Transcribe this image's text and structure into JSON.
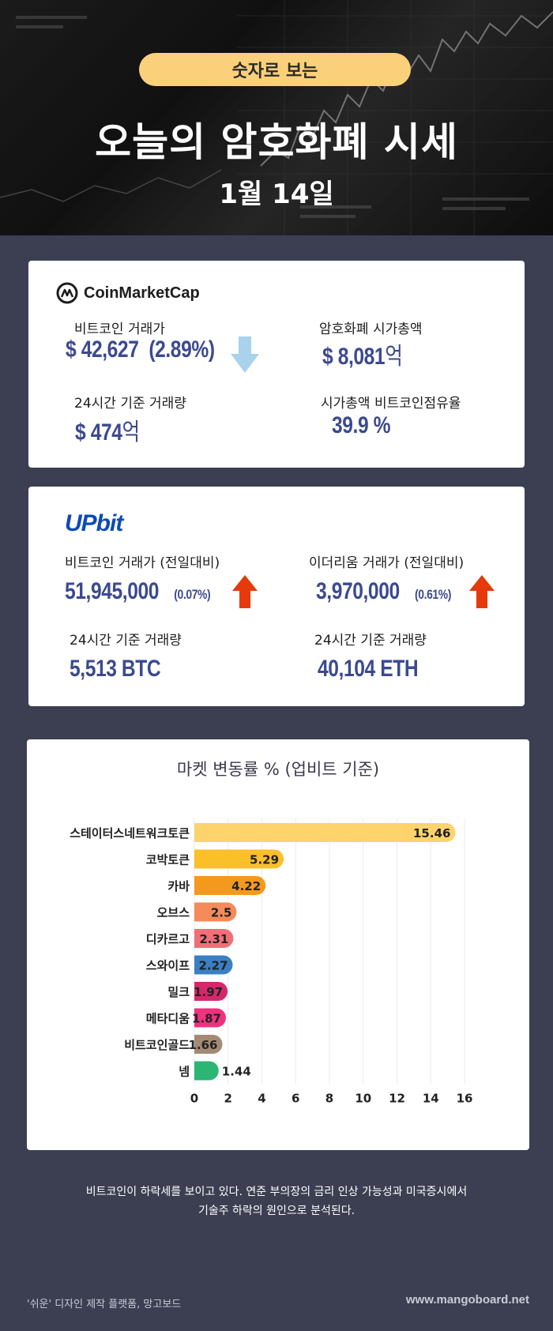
{
  "header": {
    "pill": "숫자로 보는",
    "title": "오늘의 암호화폐 시세",
    "date": "1월 14일"
  },
  "coinmarketcap": {
    "logo_text": "CoinMarketCap",
    "btc_label": "비트코인 거래가",
    "btc_price": "$ 42,627",
    "btc_change": "(2.89%)",
    "btc_direction": "down",
    "mcap_label": "암호화폐 시가총액",
    "mcap_value": "$ 8,081",
    "mcap_unit": "억",
    "volume_label": "24시간 기준 거래량",
    "volume_value": "$ 474",
    "volume_unit": "억",
    "dominance_label": "시가총액 비트코인점유율",
    "dominance_value": "39.9 %"
  },
  "upbit": {
    "logo_text": "UPbit",
    "btc_label": "비트코인 거래가 (전일대비)",
    "btc_price": "51,945,000",
    "btc_change": "(0.07%)",
    "btc_direction": "up",
    "eth_label": "이더리움 거래가 (전일대비)",
    "eth_price": "3,970,000",
    "eth_change": "(0.61%)",
    "eth_direction": "up",
    "btc_volume_label": "24시간 기준 거래량",
    "btc_volume": "5,513 BTC",
    "eth_volume_label": "24시간 기준 거래량",
    "eth_volume": "40,104 ETH"
  },
  "chart_data": {
    "type": "bar",
    "orientation": "horizontal",
    "title": "마켓 변동률 % (업비트 기준)",
    "categories": [
      "스테이터스네트워크토큰",
      "코박토큰",
      "카바",
      "오브스",
      "디카르고",
      "스와이프",
      "밀크",
      "메타디움",
      "비트코인골드",
      "넴"
    ],
    "values": [
      15.46,
      5.29,
      4.22,
      2.5,
      2.31,
      2.27,
      1.97,
      1.87,
      1.66,
      1.44
    ],
    "value_labels": [
      "15.46",
      "5.29",
      "4.22",
      "2.5",
      "2.31",
      "2.27",
      "1.97",
      "1.87",
      "1.66",
      "1.44"
    ],
    "colors": [
      "#fdd46b",
      "#fbbf2a",
      "#f39a1e",
      "#f58a5a",
      "#f06f78",
      "#3a7fc4",
      "#d4286b",
      "#f0317f",
      "#a48a74",
      "#2bb673"
    ],
    "x_ticks": [
      "0",
      "2",
      "4",
      "6",
      "8",
      "10",
      "12",
      "14",
      "16"
    ],
    "xlim": [
      0,
      16
    ],
    "grid": true
  },
  "note": {
    "line1": "비트코인이 하락세를 보이고 있다. 연준 부의장의 금리 인상 가능성과 미국증시에서",
    "line2": "기술주 하락의 원인으로 분석된다."
  },
  "footer": {
    "left": "'쉬운' 디자인 제작 플랫폼, 망고보드",
    "right": "www.mangoboard.net"
  },
  "colors": {
    "background": "#3c3f52",
    "value_blue": "#3b4a8f",
    "arrow_down": "#a9d2ec",
    "arrow_up": "#e53a0b",
    "pill": "#fbd07a"
  }
}
